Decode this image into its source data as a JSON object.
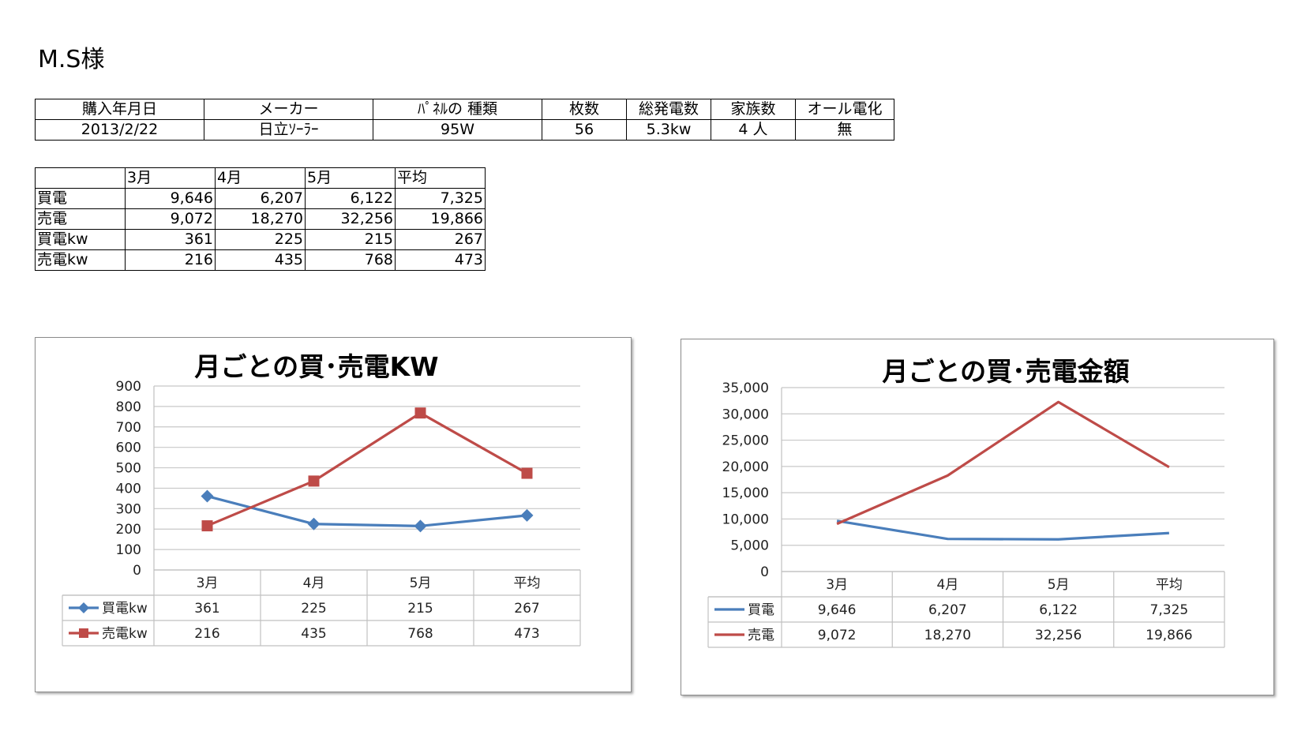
{
  "page_title": "M.S様",
  "info_table": {
    "headers": [
      "購入年月日",
      "メーカー",
      "ﾊﾟﾈﾙの 種類",
      "枚数",
      "総発電数",
      "家族数",
      "オール電化"
    ],
    "values": [
      "2013/2/22",
      "日立ｿｰﾗｰ",
      "95W",
      "56",
      "5.3kw",
      "4 人",
      "無"
    ]
  },
  "monthly_table": {
    "headers": [
      "",
      "3月",
      "4月",
      "5月",
      "平均"
    ],
    "rows": [
      [
        "買電",
        "9,646",
        "6,207",
        "6,122",
        "7,325"
      ],
      [
        "売電",
        "9,072",
        "18,270",
        "32,256",
        "19,866"
      ],
      [
        "買電kw",
        "361",
        "225",
        "215",
        "267"
      ],
      [
        "売電kw",
        "216",
        "435",
        "768",
        "473"
      ]
    ]
  },
  "chart_data": [
    {
      "type": "line",
      "title": "月ごとの買･売電KW",
      "categories": [
        "3月",
        "4月",
        "5月",
        "平均"
      ],
      "ylim": [
        0,
        900
      ],
      "yticks": [
        "900",
        "800",
        "700",
        "600",
        "500",
        "400",
        "300",
        "200",
        "100",
        "0"
      ],
      "grid": true,
      "legend": "data-table",
      "series": [
        {
          "name": "買電kw",
          "values": [
            361,
            225,
            215,
            267
          ],
          "labels": [
            "361",
            "225",
            "215",
            "267"
          ],
          "color": "#4a7ebb",
          "marker": "diamond"
        },
        {
          "name": "売電kw",
          "values": [
            216,
            435,
            768,
            473
          ],
          "labels": [
            "216",
            "435",
            "768",
            "473"
          ],
          "color": "#be4b48",
          "marker": "square"
        }
      ]
    },
    {
      "type": "line",
      "title": "月ごとの買･売電金額",
      "categories": [
        "3月",
        "4月",
        "5月",
        "平均"
      ],
      "ylim": [
        0,
        35000
      ],
      "yticks": [
        "35,000",
        "30,000",
        "25,000",
        "20,000",
        "15,000",
        "10,000",
        "5,000",
        "0"
      ],
      "grid": true,
      "legend": "data-table",
      "series": [
        {
          "name": "買電",
          "values": [
            9646,
            6207,
            6122,
            7325
          ],
          "labels": [
            "9,646",
            "6,207",
            "6,122",
            "7,325"
          ],
          "color": "#4a7ebb",
          "marker": "none"
        },
        {
          "name": "売電",
          "values": [
            9072,
            18270,
            32256,
            19866
          ],
          "labels": [
            "9,072",
            "18,270",
            "32,256",
            "19,866"
          ],
          "color": "#be4b48",
          "marker": "none"
        }
      ]
    }
  ]
}
